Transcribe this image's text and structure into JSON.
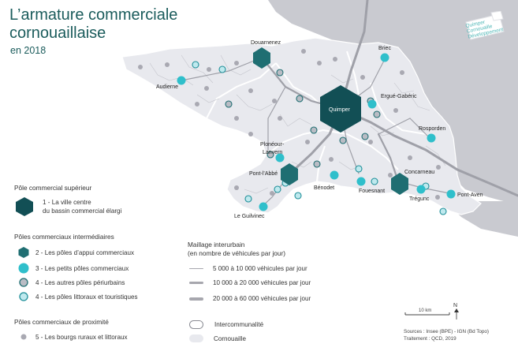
{
  "title": {
    "line1": "L’armature commerciale",
    "line2": "cornouaillaise",
    "year": "en 2018"
  },
  "logo": {
    "line1": "Quimper",
    "line2": "Cornouaille",
    "line3": "Développement"
  },
  "places": {
    "douarnenez": "Douarnenez",
    "briec": "Briec",
    "audierne": "Audierne",
    "quimper": "Quimper",
    "ergue_gaberic": "Ergué-Gabéric",
    "rosporden": "Rosporden",
    "plonéour_lanvern": "Plonéour-\nLanvern",
    "ploneour_line1": "Plonéour-",
    "ploneour_line2": "Lanvern",
    "pont_l_abbe": "Pont-l’Abbé",
    "concarneau": "Concarneau",
    "benodet": "Bénodet",
    "fouesnant": "Fouesnant",
    "tregunc": "Trégunc",
    "pont_aven": "Pont-Aven",
    "le_guilvinec": "Le Guilvinec"
  },
  "legend": {
    "superior": {
      "heading": "Pôle commercial supérieur",
      "item1_line1": "1 - La ville centre",
      "item1_line2": "du bassin commercial élargi"
    },
    "intermediate": {
      "heading": "Pôles commerciaux intermédiaires",
      "item2": "2 - Les pôles d’appui commerciaux",
      "item3": "3 - Les petits pôles commerciaux",
      "item4a": "4 - Les autres pôles périurbains",
      "item4b": "4 - Les pôles littoraux et touristiques"
    },
    "proximity": {
      "heading": "Pôles commerciaux de proximité",
      "item5": "5 - Les bourgs ruraux et littoraux"
    },
    "roads": {
      "heading_line1": "Maillage interurbain",
      "heading_line2": "(en nombre de véhicules par jour)",
      "r1": "5 000 à 10 000 véhicules par jour",
      "r2": "10 000 à 20 000 véhicules par jour",
      "r3": "20 000 à 60 000 véhicules par jour"
    },
    "areas": {
      "interco": "Intercommunalité",
      "cornouaille": "Cornouaille"
    }
  },
  "scale_label": "10 km",
  "north_label": "N",
  "sources": {
    "line1": "Sources : Insee (BPE) - IGN (Bd Topo)",
    "line2": "Traitement : QCD, 2019"
  },
  "colors": {
    "dark_teal": "#124f55",
    "mid_teal": "#1f6e72",
    "cyan": "#2fbfcb",
    "grey_dot": "#a9a9b2",
    "territory": "#e8e9ee",
    "outside_land": "#c9cad0",
    "road": "#9fa0a8"
  }
}
